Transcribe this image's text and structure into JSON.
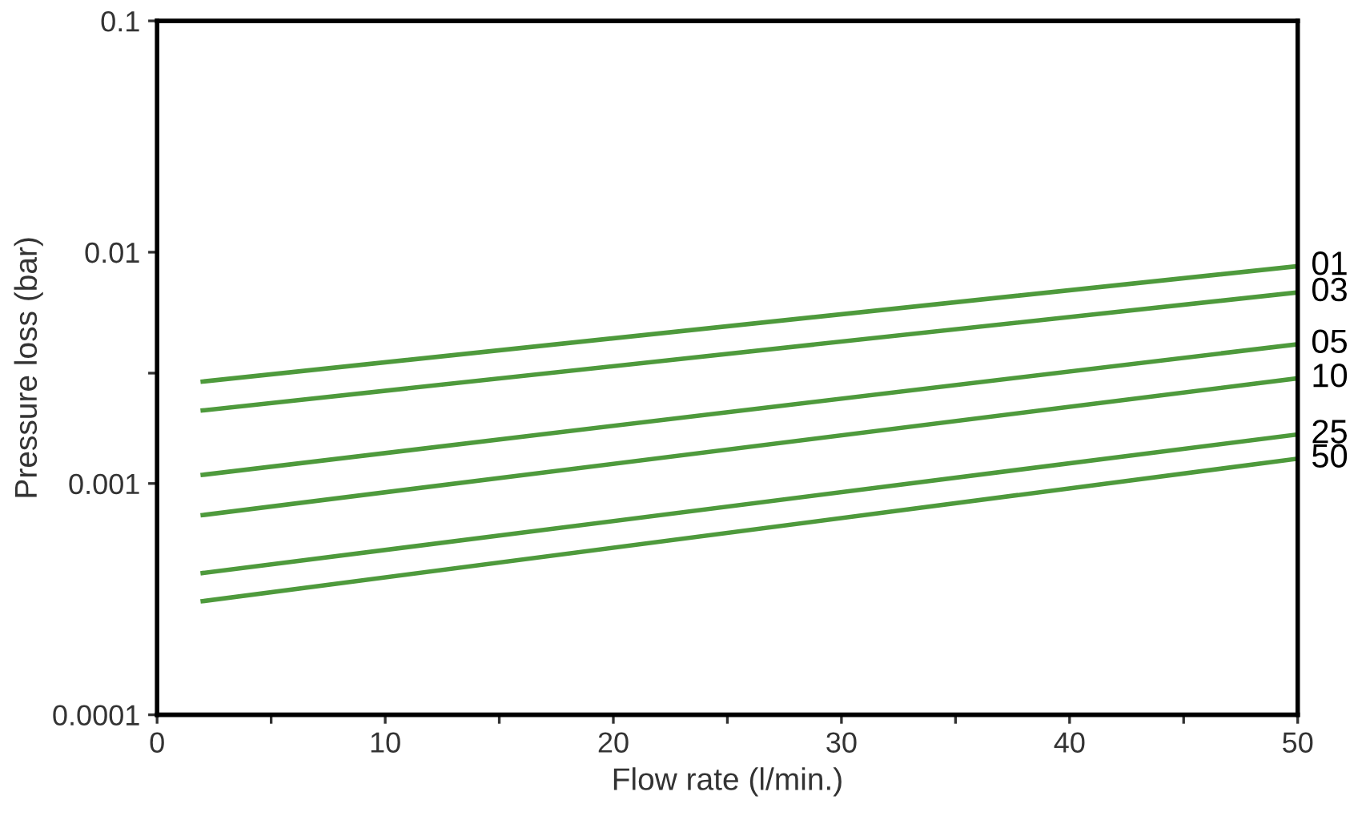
{
  "chart_data": {
    "type": "line",
    "xlabel": "Flow rate (l/min.)",
    "ylabel": "Pressure loss (bar)",
    "log": "y",
    "grid": false,
    "legend": false,
    "marker": "none",
    "line_style": "solid",
    "x": [
      2,
      50
    ],
    "series": [
      {
        "name": "01",
        "color": "#4e9a3c",
        "values": [
          0.00276,
          0.0087
        ]
      },
      {
        "name": "03",
        "color": "#4e9a3c",
        "values": [
          0.00207,
          0.0067
        ]
      },
      {
        "name": "05",
        "color": "#4e9a3c",
        "values": [
          0.00109,
          0.004
        ]
      },
      {
        "name": "10",
        "color": "#4e9a3c",
        "values": [
          0.00073,
          0.00285
        ]
      },
      {
        "name": "25",
        "color": "#4e9a3c",
        "values": [
          0.00041,
          0.00163
        ]
      },
      {
        "name": "50",
        "color": "#4e9a3c",
        "values": [
          0.00031,
          0.00128
        ]
      }
    ],
    "xlim": [
      0,
      50
    ],
    "xticks": [
      0,
      {
        "value": 5,
        "label": null
      },
      10,
      {
        "value": 15,
        "label": null
      },
      20,
      {
        "value": 25,
        "label": null
      },
      30,
      {
        "value": 35,
        "label": null
      },
      40,
      {
        "value": 45,
        "label": null
      },
      50
    ],
    "ylim": [
      0.0001,
      0.1
    ],
    "yticks": [
      0.0001,
      0.001,
      {
        "value": 0.003,
        "label": null
      },
      0.01,
      0.1
    ]
  }
}
